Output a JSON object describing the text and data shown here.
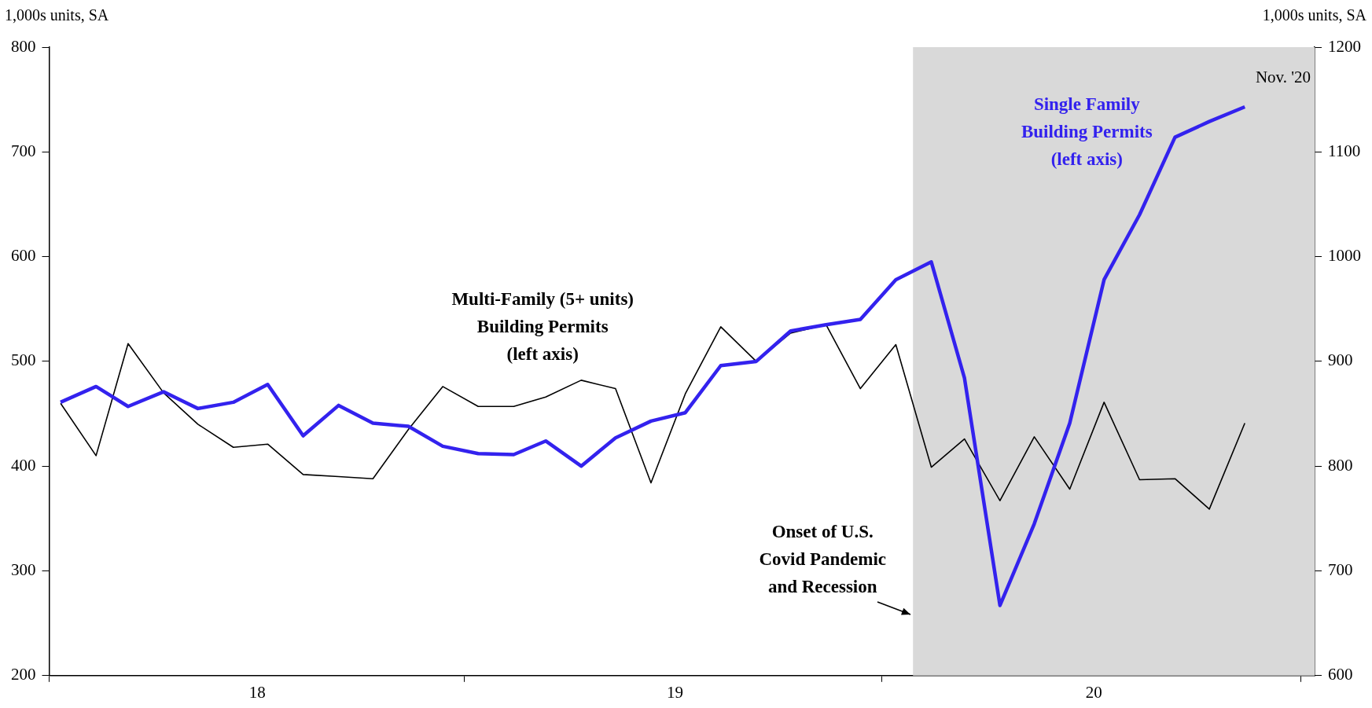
{
  "chart_data": {
    "type": "line",
    "ylabel": "1,000s units, SA",
    "y2label": "1,000s units, SA",
    "x": [
      "2018-01",
      "2018-02",
      "2018-03",
      "2018-04",
      "2018-05",
      "2018-06",
      "2018-07",
      "2018-08",
      "2018-09",
      "2018-10",
      "2018-11",
      "2018-12",
      "2019-01",
      "2019-02",
      "2019-03",
      "2019-04",
      "2019-05",
      "2019-06",
      "2019-07",
      "2019-08",
      "2019-09",
      "2019-10",
      "2019-11",
      "2019-12",
      "2020-01",
      "2020-02",
      "2020-03",
      "2020-04",
      "2020-05",
      "2020-06",
      "2020-07",
      "2020-08",
      "2020-09",
      "2020-10",
      "2020-11"
    ],
    "series": [
      {
        "name": "Multi-Family (5+ units) Building Permits (left axis)",
        "color": "#000000",
        "values": [
          460,
          410,
          517,
          470,
          440,
          418,
          421,
          392,
          390,
          388,
          435,
          476,
          457,
          457,
          466,
          482,
          474,
          384,
          469,
          533,
          500,
          527,
          535,
          474,
          516,
          399,
          426,
          367,
          428,
          378,
          461,
          387,
          388,
          359,
          441
        ]
      },
      {
        "name": "Single Family Building Permits (left axis)",
        "color": "#3322ee",
        "axis": "y2",
        "values": [
          861,
          876,
          857,
          871,
          855,
          861,
          878,
          829,
          858,
          841,
          838,
          819,
          812,
          811,
          824,
          800,
          827,
          843,
          851,
          896,
          900,
          929,
          935,
          940,
          978,
          995,
          884,
          667,
          745,
          841,
          978,
          1040,
          1114,
          1129,
          1143
        ]
      }
    ],
    "xlim": [
      "2017-12-22",
      "2021-01-01"
    ],
    "xticks": [
      {
        "value": "2017-12-22",
        "label": null
      },
      {
        "value": "2018-06-22",
        "label": "18"
      },
      {
        "value": "2018-12-20",
        "label": null
      },
      {
        "value": "2019-06-22",
        "label": "19"
      },
      {
        "value": "2019-12-20",
        "label": null
      },
      {
        "value": "2020-06-22",
        "label": "20"
      },
      {
        "value": "2020-12-20",
        "label": null
      }
    ],
    "ylim": [
      200,
      800
    ],
    "yticks": [
      200,
      300,
      400,
      500,
      600,
      700,
      800
    ],
    "y2lim": [
      600,
      1200
    ],
    "y2ticks": [
      600,
      700,
      800,
      900,
      1000,
      1100,
      1200
    ],
    "bands": [
      {
        "axis": "x",
        "from": "2020-01-16",
        "to": "2021-01-01",
        "label": "Onset of U.S. Covid Pandemic and Recession",
        "color": "#d9d9d9"
      }
    ],
    "annotations": [
      "Nov. '20"
    ],
    "grid": false,
    "legend": false,
    "marker": "none",
    "line_style": "solid"
  }
}
